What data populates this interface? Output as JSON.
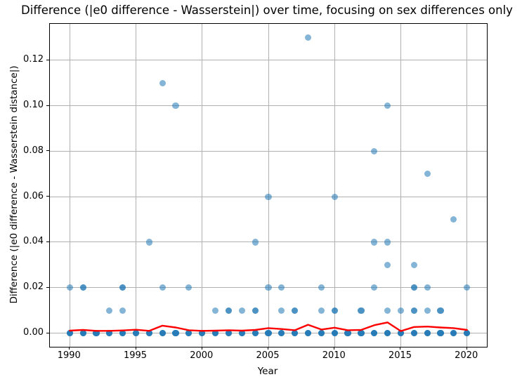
{
  "chart_data": {
    "type": "scatter",
    "title": "Difference (|e0 difference - Wasserstein|) over time, focusing on sex differences only",
    "xlabel": "Year",
    "ylabel": "Difference (|e0 difference - Wasserstein distance|)",
    "xlim": [
      1988.5,
      2021.5
    ],
    "ylim": [
      -0.006,
      0.136
    ],
    "grid": true,
    "legend": "none",
    "x_ticks": [
      1990,
      1995,
      2000,
      2005,
      2010,
      2015,
      2020
    ],
    "x_tick_labels": [
      "1990",
      "1995",
      "2000",
      "2005",
      "2010",
      "2015",
      "2020"
    ],
    "y_ticks": [
      0.0,
      0.02,
      0.04,
      0.06,
      0.08,
      0.1,
      0.12
    ],
    "y_tick_labels": [
      "0.00",
      "0.02",
      "0.04",
      "0.06",
      "0.08",
      "0.10",
      "0.12"
    ],
    "marker_color": "#1f77b4",
    "marker_alpha": 0.55,
    "mean_line_color": "#ff0000",
    "grid_color": "#b0b0b0",
    "scatter_points": [
      {
        "year": 1990,
        "value": 0.0,
        "count": 4
      },
      {
        "year": 1991,
        "value": 0.0,
        "count": 4
      },
      {
        "year": 1992,
        "value": 0.0,
        "count": 4
      },
      {
        "year": 1993,
        "value": 0.0,
        "count": 4
      },
      {
        "year": 1994,
        "value": 0.0,
        "count": 4
      },
      {
        "year": 1995,
        "value": 0.0,
        "count": 4
      },
      {
        "year": 1996,
        "value": 0.0,
        "count": 4
      },
      {
        "year": 1997,
        "value": 0.0,
        "count": 4
      },
      {
        "year": 1998,
        "value": 0.0,
        "count": 4
      },
      {
        "year": 1999,
        "value": 0.0,
        "count": 4
      },
      {
        "year": 2000,
        "value": 0.0,
        "count": 4
      },
      {
        "year": 2001,
        "value": 0.0,
        "count": 4
      },
      {
        "year": 2002,
        "value": 0.0,
        "count": 4
      },
      {
        "year": 2003,
        "value": 0.0,
        "count": 4
      },
      {
        "year": 2004,
        "value": 0.0,
        "count": 4
      },
      {
        "year": 2005,
        "value": 0.0,
        "count": 4
      },
      {
        "year": 2006,
        "value": 0.0,
        "count": 4
      },
      {
        "year": 2007,
        "value": 0.0,
        "count": 4
      },
      {
        "year": 2008,
        "value": 0.0,
        "count": 4
      },
      {
        "year": 2009,
        "value": 0.0,
        "count": 4
      },
      {
        "year": 2010,
        "value": 0.0,
        "count": 4
      },
      {
        "year": 2011,
        "value": 0.0,
        "count": 4
      },
      {
        "year": 2012,
        "value": 0.0,
        "count": 4
      },
      {
        "year": 2013,
        "value": 0.0,
        "count": 4
      },
      {
        "year": 2014,
        "value": 0.0,
        "count": 4
      },
      {
        "year": 2015,
        "value": 0.0,
        "count": 4
      },
      {
        "year": 2016,
        "value": 0.0,
        "count": 4
      },
      {
        "year": 2017,
        "value": 0.0,
        "count": 4
      },
      {
        "year": 2018,
        "value": 0.0,
        "count": 4
      },
      {
        "year": 2019,
        "value": 0.0,
        "count": 4
      },
      {
        "year": 2020,
        "value": 0.0,
        "count": 4
      },
      {
        "year": 1993,
        "value": 0.01,
        "count": 1
      },
      {
        "year": 1994,
        "value": 0.01,
        "count": 1
      },
      {
        "year": 2001,
        "value": 0.01,
        "count": 1
      },
      {
        "year": 2002,
        "value": 0.01,
        "count": 2
      },
      {
        "year": 2003,
        "value": 0.01,
        "count": 1
      },
      {
        "year": 2004,
        "value": 0.01,
        "count": 2
      },
      {
        "year": 2006,
        "value": 0.01,
        "count": 1
      },
      {
        "year": 2007,
        "value": 0.01,
        "count": 2
      },
      {
        "year": 2009,
        "value": 0.01,
        "count": 1
      },
      {
        "year": 2010,
        "value": 0.01,
        "count": 2
      },
      {
        "year": 2012,
        "value": 0.01,
        "count": 2
      },
      {
        "year": 2014,
        "value": 0.01,
        "count": 1
      },
      {
        "year": 2015,
        "value": 0.01,
        "count": 1
      },
      {
        "year": 2016,
        "value": 0.01,
        "count": 2
      },
      {
        "year": 2017,
        "value": 0.01,
        "count": 1
      },
      {
        "year": 2018,
        "value": 0.01,
        "count": 2
      },
      {
        "year": 1990,
        "value": 0.02,
        "count": 1
      },
      {
        "year": 1991,
        "value": 0.02,
        "count": 2
      },
      {
        "year": 1994,
        "value": 0.02,
        "count": 2
      },
      {
        "year": 1997,
        "value": 0.02,
        "count": 1
      },
      {
        "year": 1999,
        "value": 0.02,
        "count": 1
      },
      {
        "year": 2005,
        "value": 0.02,
        "count": 1
      },
      {
        "year": 2006,
        "value": 0.02,
        "count": 1
      },
      {
        "year": 2009,
        "value": 0.02,
        "count": 1
      },
      {
        "year": 2013,
        "value": 0.02,
        "count": 1
      },
      {
        "year": 2016,
        "value": 0.02,
        "count": 2
      },
      {
        "year": 2017,
        "value": 0.02,
        "count": 1
      },
      {
        "year": 2020,
        "value": 0.02,
        "count": 1
      },
      {
        "year": 2014,
        "value": 0.03,
        "count": 1
      },
      {
        "year": 2016,
        "value": 0.03,
        "count": 1
      },
      {
        "year": 1996,
        "value": 0.04,
        "count": 1
      },
      {
        "year": 2004,
        "value": 0.04,
        "count": 1
      },
      {
        "year": 2013,
        "value": 0.04,
        "count": 1
      },
      {
        "year": 2014,
        "value": 0.04,
        "count": 1
      },
      {
        "year": 2019,
        "value": 0.05,
        "count": 1
      },
      {
        "year": 2005,
        "value": 0.06,
        "count": 1
      },
      {
        "year": 2010,
        "value": 0.06,
        "count": 1
      },
      {
        "year": 2017,
        "value": 0.07,
        "count": 1
      },
      {
        "year": 2013,
        "value": 0.08,
        "count": 1
      },
      {
        "year": 1998,
        "value": 0.1,
        "count": 1
      },
      {
        "year": 2014,
        "value": 0.1,
        "count": 1
      },
      {
        "year": 1997,
        "value": 0.11,
        "count": 1
      },
      {
        "year": 2008,
        "value": 0.13,
        "count": 1
      }
    ],
    "mean_line": {
      "x": [
        1990,
        1991,
        1992,
        1993,
        1994,
        1995,
        1996,
        1997,
        1998,
        1999,
        2000,
        2001,
        2002,
        2003,
        2004,
        2005,
        2006,
        2007,
        2008,
        2009,
        2010,
        2011,
        2012,
        2013,
        2014,
        2015,
        2016,
        2017,
        2018,
        2019,
        2020
      ],
      "y": [
        0.0011,
        0.0014,
        0.001,
        0.001,
        0.0012,
        0.0015,
        0.001,
        0.0033,
        0.0025,
        0.0013,
        0.001,
        0.0011,
        0.0013,
        0.0011,
        0.0014,
        0.0022,
        0.0018,
        0.0013,
        0.0037,
        0.0016,
        0.0024,
        0.0013,
        0.0014,
        0.0035,
        0.0047,
        0.0009,
        0.0027,
        0.0029,
        0.0025,
        0.0022,
        0.0014
      ]
    }
  }
}
